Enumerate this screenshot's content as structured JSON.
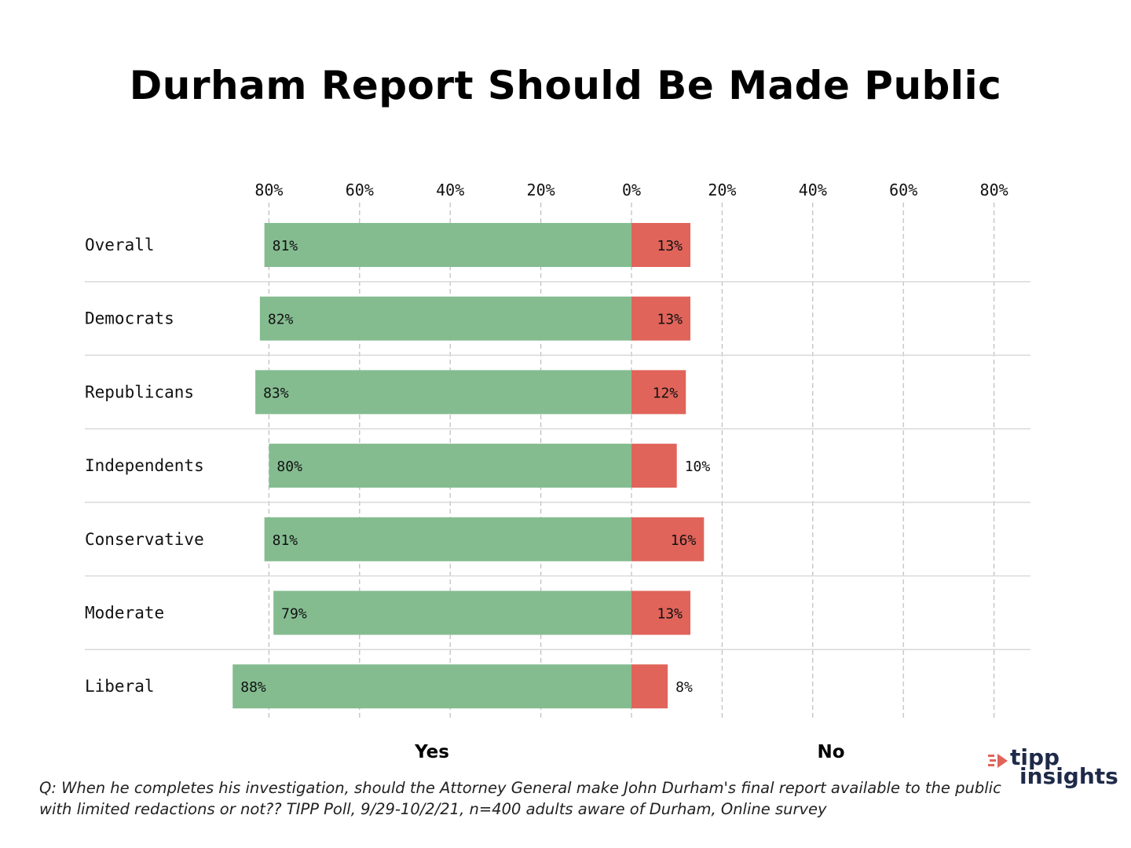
{
  "title": "Durham Report Should Be Made Public",
  "chart_data": {
    "type": "bar",
    "orientation": "horizontal-diverging",
    "categories": [
      "Overall",
      "Democrats",
      "Republicans",
      "Independents",
      "Conservative",
      "Moderate",
      "Liberal"
    ],
    "series": [
      {
        "name": "Yes",
        "values": [
          81,
          82,
          83,
          80,
          81,
          79,
          88
        ],
        "color": "#84bc90",
        "direction": "left"
      },
      {
        "name": "No",
        "values": [
          13,
          13,
          12,
          10,
          16,
          13,
          8
        ],
        "color": "#e0645a",
        "direction": "right"
      }
    ],
    "value_labels_yes": [
      "81%",
      "82%",
      "83%",
      "80%",
      "81%",
      "79%",
      "88%"
    ],
    "value_labels_no": [
      "13%",
      "13%",
      "12%",
      "10%",
      "16%",
      "13%",
      "8%"
    ],
    "ticks": [
      {
        "value": -80,
        "label": "80%"
      },
      {
        "value": -60,
        "label": "60%"
      },
      {
        "value": -40,
        "label": "40%"
      },
      {
        "value": -20,
        "label": "20%"
      },
      {
        "value": 0,
        "label": "0%"
      },
      {
        "value": 20,
        "label": "20%"
      },
      {
        "value": 40,
        "label": "40%"
      },
      {
        "value": 60,
        "label": "60%"
      },
      {
        "value": 80,
        "label": "80%"
      }
    ],
    "xlim": [
      -80,
      80
    ],
    "grid": "dashed vertical",
    "xlabel_left": "Yes",
    "xlabel_right": "No"
  },
  "footnote": {
    "line1": "Q: When he completes his investigation, should the Attorney General make John Durham's final report available to the public",
    "line2": "with limited redactions or not?? TIPP Poll, 9/29-10/2/21, n=400 adults aware of Durham, Online survey"
  },
  "logo": {
    "top": "tipp",
    "bottom": "insights",
    "mark_color": "#e0645a",
    "text_color": "#1f2a4a"
  }
}
